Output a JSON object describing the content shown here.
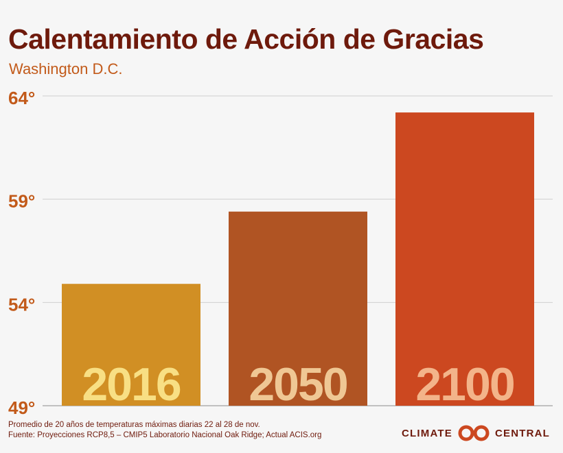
{
  "header": {
    "title": "Calentamiento de Acción de Gracias",
    "subtitle": "Washington D.C."
  },
  "chart_data": {
    "type": "bar",
    "title": "Calentamiento de Acción de Gracias",
    "subtitle": "Washington D.C.",
    "categories": [
      "2016",
      "2050",
      "2100"
    ],
    "values": [
      54.9,
      58.4,
      63.2
    ],
    "bar_colors": [
      "#d18f24",
      "#b05423",
      "#cc4820"
    ],
    "label_colors": [
      "#f8df84",
      "#efc794",
      "#f3b48a"
    ],
    "ylim": [
      49,
      64
    ],
    "yticks": [
      64,
      59,
      54,
      49
    ],
    "ytick_labels": [
      "64°",
      "59°",
      "54°",
      "49°"
    ],
    "grid": true,
    "legend": "none"
  },
  "footer": {
    "note_line1": "Promedio de 20 años de temperaturas máximas diarias 22 al 28 de nov.",
    "note_line2": "Fuente: Proyecciones RCP8,5 – CMIP5 Laboratorio Nacional Oak Ridge; Actual ACIS.org",
    "brand_left": "CLIMATE",
    "brand_right": "CENTRAL",
    "brand_icon": "climate-central-logo-icon"
  }
}
